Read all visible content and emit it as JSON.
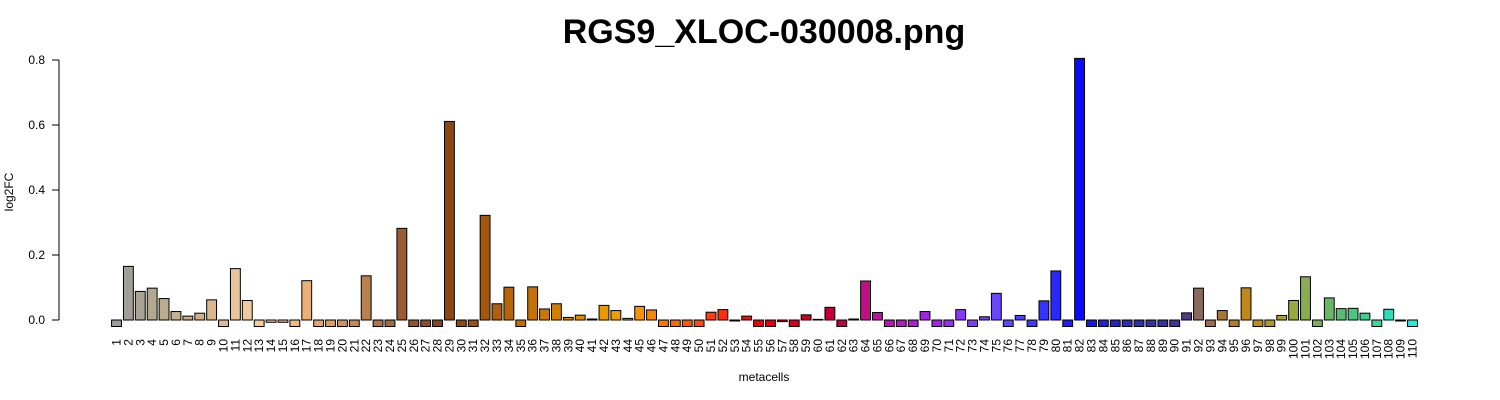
{
  "chart_data": {
    "type": "bar",
    "title": "RGS9_XLOC-030008.png",
    "xlabel": "metacells",
    "ylabel": "log2FC",
    "ylim": [
      -0.02,
      0.8
    ],
    "yticks": [
      0.0,
      0.2,
      0.4,
      0.6,
      0.8
    ],
    "ytick_labels": [
      "0.0",
      "0.2",
      "0.4",
      "0.6",
      "0.8"
    ],
    "grid": false,
    "legend": "none",
    "categories": [
      "1",
      "2",
      "3",
      "4",
      "5",
      "6",
      "7",
      "8",
      "9",
      "10",
      "11",
      "12",
      "13",
      "14",
      "15",
      "16",
      "17",
      "18",
      "19",
      "20",
      "21",
      "22",
      "23",
      "24",
      "25",
      "26",
      "27",
      "28",
      "29",
      "30",
      "31",
      "32",
      "33",
      "34",
      "35",
      "36",
      "37",
      "38",
      "39",
      "40",
      "41",
      "42",
      "43",
      "44",
      "45",
      "46",
      "47",
      "48",
      "49",
      "50",
      "51",
      "52",
      "53",
      "54",
      "55",
      "56",
      "57",
      "58",
      "59",
      "60",
      "61",
      "62",
      "63",
      "64",
      "65",
      "66",
      "67",
      "68",
      "69",
      "70",
      "71",
      "72",
      "73",
      "74",
      "75",
      "76",
      "77",
      "78",
      "79",
      "80",
      "81",
      "82",
      "83",
      "84",
      "85",
      "86",
      "87",
      "88",
      "89",
      "90",
      "91",
      "92",
      "93",
      "94",
      "95",
      "96",
      "97",
      "98",
      "99",
      "100",
      "101",
      "102",
      "103",
      "104",
      "105",
      "106",
      "107",
      "108",
      "109",
      "110"
    ],
    "values": [
      -0.02,
      0.165,
      0.088,
      0.098,
      0.066,
      0.026,
      0.012,
      0.021,
      0.062,
      -0.02,
      0.158,
      0.06,
      -0.02,
      -0.007,
      -0.007,
      -0.02,
      0.121,
      -0.02,
      -0.02,
      -0.02,
      -0.02,
      0.136,
      -0.02,
      -0.02,
      0.282,
      -0.02,
      -0.02,
      -0.02,
      0.611,
      -0.02,
      -0.02,
      0.322,
      0.05,
      0.101,
      -0.02,
      0.102,
      0.034,
      0.05,
      0.008,
      0.015,
      0.003,
      0.045,
      0.029,
      0.005,
      0.042,
      0.031,
      -0.02,
      -0.02,
      -0.02,
      -0.02,
      0.024,
      0.032,
      -0.003,
      0.012,
      -0.02,
      -0.02,
      -0.005,
      -0.02,
      0.016,
      0.002,
      0.039,
      -0.02,
      0.003,
      0.12,
      0.023,
      -0.02,
      -0.02,
      -0.02,
      0.026,
      -0.02,
      -0.02,
      0.032,
      -0.02,
      0.01,
      0.082,
      -0.02,
      0.014,
      -0.02,
      0.059,
      0.151,
      -0.02,
      0.805,
      -0.02,
      -0.02,
      -0.02,
      -0.02,
      -0.02,
      -0.02,
      -0.02,
      -0.02,
      0.022,
      0.098,
      -0.02,
      0.029,
      -0.02,
      0.099,
      -0.02,
      -0.02,
      0.014,
      0.06,
      0.133,
      -0.02,
      0.068,
      0.035,
      0.036,
      0.021,
      -0.02,
      0.033,
      -0.003,
      -0.02
    ],
    "colors": [
      "#9c9c9c",
      "#a19e97",
      "#a9a396",
      "#b1a890",
      "#baae91",
      "#c3b28e",
      "#caae88",
      "#d1b18a",
      "#d9b88e",
      "#e0bb90",
      "#e7c49a",
      "#eeca9d",
      "#f3cb9c",
      "#f4c99a",
      "#f2c08e",
      "#eeb985",
      "#e9b077",
      "#e0a66d",
      "#d79d67",
      "#cd9460",
      "#c38b58",
      "#b9804f",
      "#ad7548",
      "#a06a40",
      "#9a5c35",
      "#935430",
      "#8c4c28",
      "#874522",
      "#8c4514",
      "#924a10",
      "#9b510e",
      "#a3580c",
      "#ad5f0b",
      "#b56609",
      "#be6d08",
      "#c47206",
      "#ca7905",
      "#d07f04",
      "#d68603",
      "#dc8c02",
      "#e29301",
      "#e99a00",
      "#ef9e00",
      "#f59e00",
      "#f99100",
      "#fb8400",
      "#fc7600",
      "#fd6800",
      "#fe5a05",
      "#fe4b0b",
      "#fe3d10",
      "#fa2f0f",
      "#f4200e",
      "#ed120d",
      "#e6060c",
      "#e0000f",
      "#da0016",
      "#d3001e",
      "#cc0026",
      "#c6002e",
      "#c00036",
      "#bf0046",
      "#bf0057",
      "#bf0f85",
      "#bd12a0",
      "#b816b4",
      "#b31ac6",
      "#ad1ed4",
      "#a624de",
      "#9d28e8",
      "#9330f0",
      "#8838f4",
      "#7d3ef6",
      "#7243f8",
      "#6648fa",
      "#5a48fb",
      "#4e40fc",
      "#4239fd",
      "#3633fe",
      "#2a28ff",
      "#1e1cff",
      "#0a0aff",
      "#1d18e8",
      "#2220d8",
      "#2626c8",
      "#2a2cba",
      "#2e2fae",
      "#3232a3",
      "#353399",
      "#3a3690",
      "#4c3d83",
      "#8a6860",
      "#9a6e4c",
      "#a67538",
      "#b17d27",
      "#c08818",
      "#bc9018",
      "#b29a22",
      "#a8a230",
      "#9aa840",
      "#8aac50",
      "#7aae5c",
      "#6ab466",
      "#5abc74",
      "#4cc482",
      "#42cc92",
      "#38d4a4",
      "#30dcb8",
      "#28e4cc",
      "#22ecde"
    ]
  }
}
